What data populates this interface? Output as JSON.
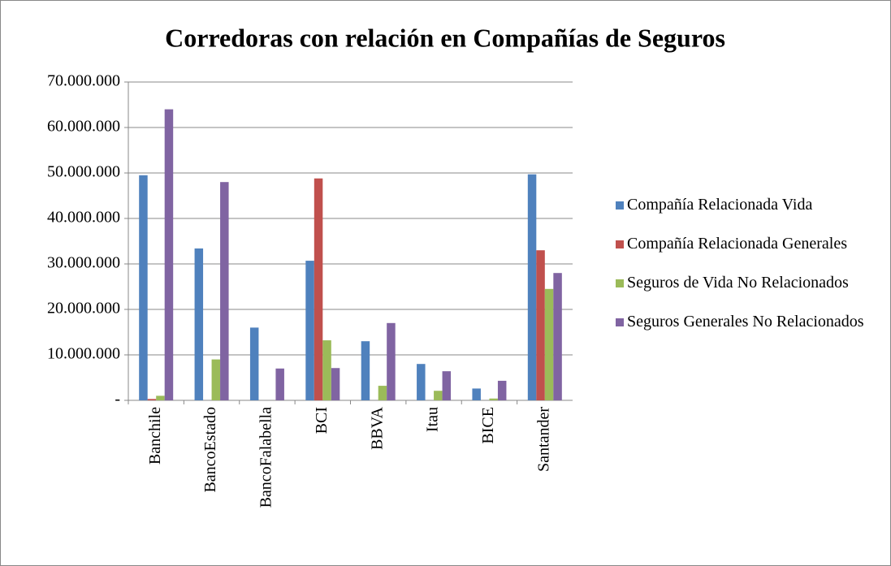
{
  "chart_data": {
    "type": "bar",
    "title": "Corredoras con relación en Compañías de Seguros",
    "categories": [
      "Banchile",
      "BancoEstado",
      "BancoFalabella",
      "BCI",
      "BBVA",
      "Itau",
      "BICE",
      "Santander"
    ],
    "series": [
      {
        "name": "Compañía Relacionada Vida",
        "color": "#4f81bd",
        "values": [
          49500000,
          33400000,
          16000000,
          30700000,
          13000000,
          8000000,
          2600000,
          49700000
        ]
      },
      {
        "name": "Compañía Relacionada Generales",
        "color": "#c0504d",
        "values": [
          300000,
          0,
          0,
          48800000,
          0,
          0,
          0,
          33000000
        ]
      },
      {
        "name": "Seguros de Vida No Relacionados",
        "color": "#9bbb59",
        "values": [
          1000000,
          9000000,
          0,
          13200000,
          3200000,
          2100000,
          400000,
          24500000
        ]
      },
      {
        "name": "Seguros Generales No Relacionados",
        "color": "#8064a2",
        "values": [
          64000000,
          48000000,
          7000000,
          7100000,
          17000000,
          6400000,
          4300000,
          28000000
        ]
      }
    ],
    "ylim": [
      0,
      70000000
    ],
    "yticks": [
      {
        "value": 0,
        "label": "-"
      },
      {
        "value": 10000000,
        "label": "10.000.000"
      },
      {
        "value": 20000000,
        "label": "20.000.000"
      },
      {
        "value": 30000000,
        "label": "30.000.000"
      },
      {
        "value": 40000000,
        "label": "40.000.000"
      },
      {
        "value": 50000000,
        "label": "50.000.000"
      },
      {
        "value": 60000000,
        "label": "60.000.000"
      },
      {
        "value": 70000000,
        "label": "70.000.000"
      }
    ],
    "grid": true,
    "legend": "right"
  }
}
